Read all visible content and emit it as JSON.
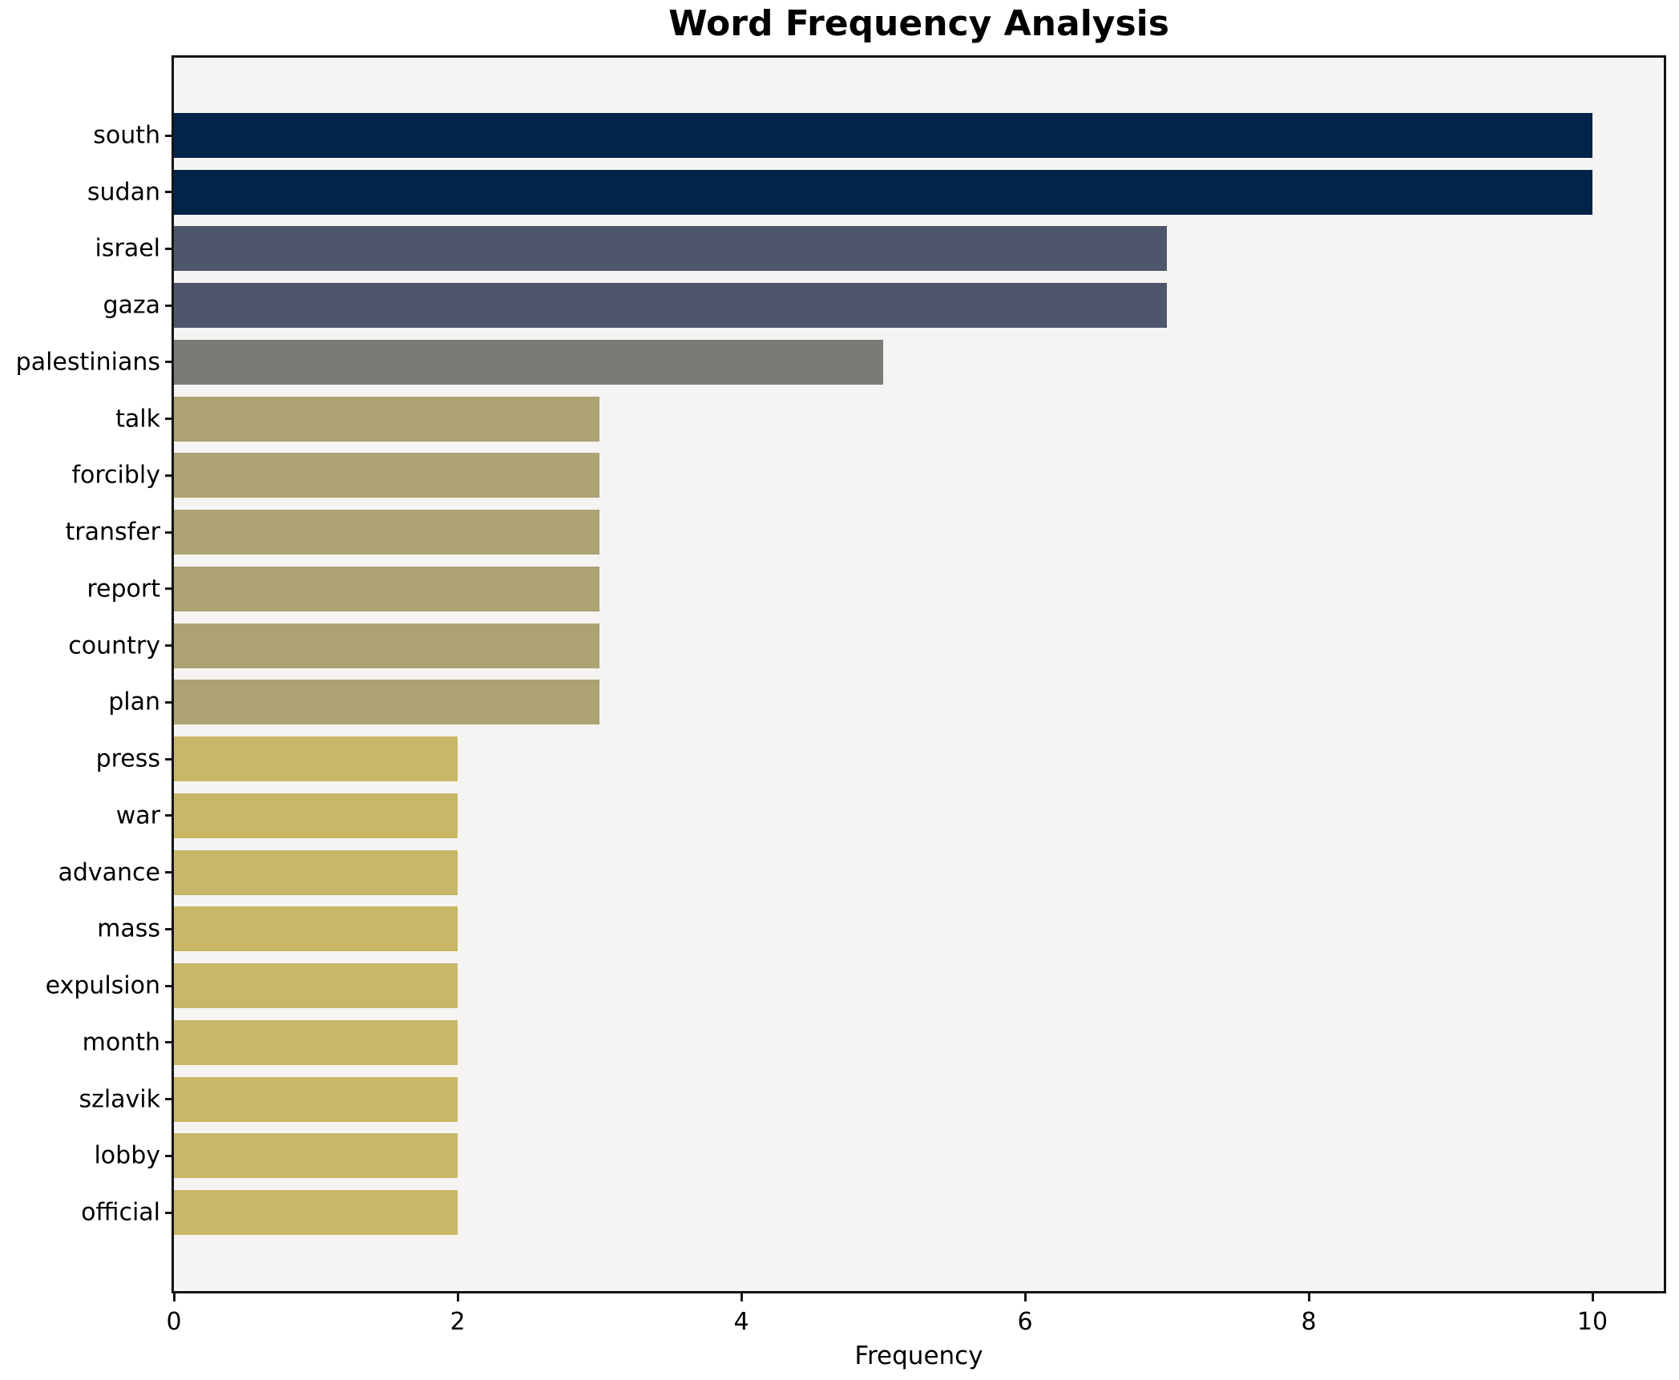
{
  "chart_data": {
    "type": "bar",
    "orientation": "horizontal",
    "title": "Word Frequency Analysis",
    "xlabel": "Frequency",
    "ylabel": "",
    "categories": [
      "south",
      "sudan",
      "israel",
      "gaza",
      "palestinians",
      "talk",
      "forcibly",
      "transfer",
      "report",
      "country",
      "plan",
      "press",
      "war",
      "advance",
      "mass",
      "expulsion",
      "month",
      "szlavik",
      "lobby",
      "official"
    ],
    "values": [
      10,
      10,
      7,
      7,
      5,
      3,
      3,
      3,
      3,
      3,
      3,
      2,
      2,
      2,
      2,
      2,
      2,
      2,
      2,
      2
    ],
    "bar_colors": [
      "#02234a",
      "#02234a",
      "#4e566b",
      "#4e566b",
      "#7b7a76",
      "#aca272",
      "#aca272",
      "#aca272",
      "#aca272",
      "#aca272",
      "#aca272",
      "#c9b768",
      "#c9b768",
      "#c9b768",
      "#c9b768",
      "#c9b768",
      "#c9b768",
      "#c9b768",
      "#c9b768",
      "#c9b768"
    ],
    "xticks": [
      0,
      2,
      4,
      6,
      8,
      10
    ],
    "xlim": [
      0,
      10.5
    ],
    "grid": false,
    "legend": null,
    "plot_background": "#f5f4f2",
    "spine_color": "#151515",
    "text_color": "#000000"
  }
}
